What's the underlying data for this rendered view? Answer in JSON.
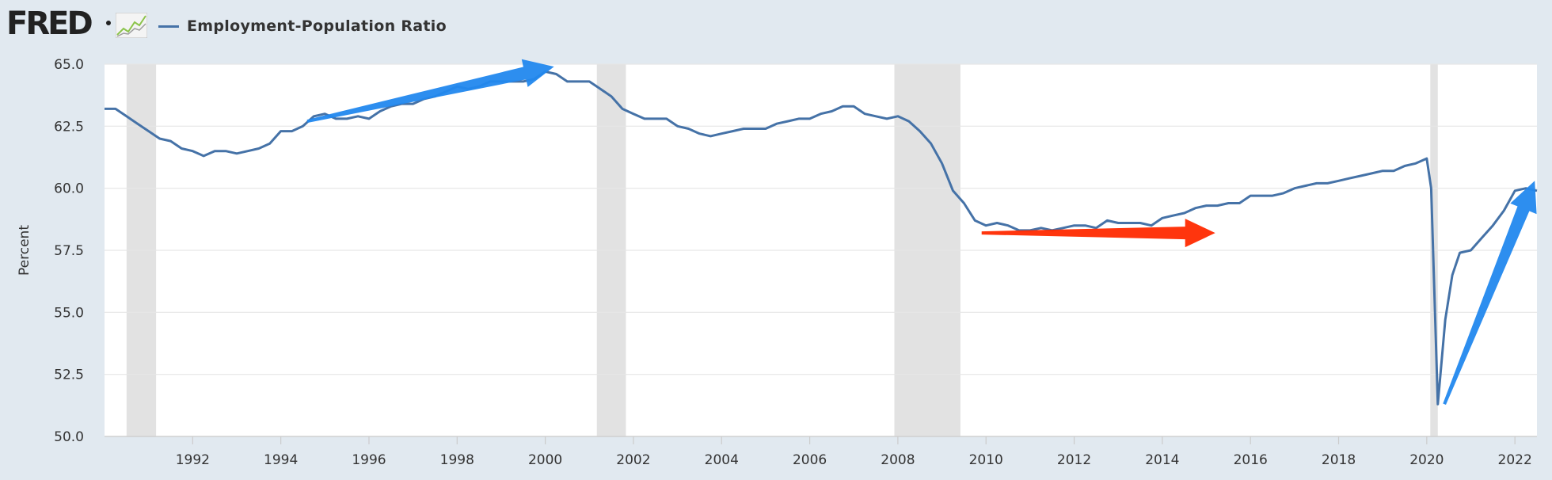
{
  "header": {
    "logo_text": "FRED",
    "legend_label": "Employment-Population Ratio",
    "series_color": "#4572a7"
  },
  "chart_data": {
    "type": "line",
    "ylabel": "Percent",
    "xlabel": "",
    "ylim": [
      50.0,
      65.0
    ],
    "xlim": [
      1990.0,
      2022.5
    ],
    "yticks": [
      "50.0",
      "52.5",
      "55.0",
      "57.5",
      "60.0",
      "62.5",
      "65.0"
    ],
    "xticks": [
      "1992",
      "1994",
      "1996",
      "1998",
      "2000",
      "2002",
      "2004",
      "2006",
      "2008",
      "2010",
      "2012",
      "2014",
      "2016",
      "2018",
      "2020",
      "2022"
    ],
    "grid": "horizontal",
    "recessions": [
      [
        1990.5,
        1991.17
      ],
      [
        2001.17,
        2001.83
      ],
      [
        2007.92,
        2009.42
      ],
      [
        2020.08,
        2020.25
      ]
    ],
    "series": [
      {
        "name": "Employment-Population Ratio",
        "color": "#4572a7",
        "points": [
          [
            1990.0,
            63.2
          ],
          [
            1990.25,
            63.2
          ],
          [
            1990.5,
            62.9
          ],
          [
            1990.75,
            62.6
          ],
          [
            1991.0,
            62.3
          ],
          [
            1991.25,
            62.0
          ],
          [
            1991.5,
            61.9
          ],
          [
            1991.75,
            61.6
          ],
          [
            1992.0,
            61.5
          ],
          [
            1992.25,
            61.3
          ],
          [
            1992.5,
            61.5
          ],
          [
            1992.75,
            61.5
          ],
          [
            1993.0,
            61.4
          ],
          [
            1993.25,
            61.5
          ],
          [
            1993.5,
            61.6
          ],
          [
            1993.75,
            61.8
          ],
          [
            1994.0,
            62.3
          ],
          [
            1994.25,
            62.3
          ],
          [
            1994.5,
            62.5
          ],
          [
            1994.75,
            62.9
          ],
          [
            1995.0,
            63.0
          ],
          [
            1995.25,
            62.8
          ],
          [
            1995.5,
            62.8
          ],
          [
            1995.75,
            62.9
          ],
          [
            1996.0,
            62.8
          ],
          [
            1996.25,
            63.1
          ],
          [
            1996.5,
            63.3
          ],
          [
            1996.75,
            63.4
          ],
          [
            1997.0,
            63.4
          ],
          [
            1997.25,
            63.6
          ],
          [
            1997.5,
            63.7
          ],
          [
            1997.75,
            63.9
          ],
          [
            1998.0,
            64.1
          ],
          [
            1998.25,
            64.0
          ],
          [
            1998.5,
            64.1
          ],
          [
            1998.75,
            64.3
          ],
          [
            1999.0,
            64.3
          ],
          [
            1999.25,
            64.3
          ],
          [
            1999.5,
            64.3
          ],
          [
            1999.75,
            64.4
          ],
          [
            2000.0,
            64.7
          ],
          [
            2000.25,
            64.6
          ],
          [
            2000.5,
            64.3
          ],
          [
            2000.75,
            64.3
          ],
          [
            2001.0,
            64.3
          ],
          [
            2001.25,
            64.0
          ],
          [
            2001.5,
            63.7
          ],
          [
            2001.75,
            63.2
          ],
          [
            2002.0,
            63.0
          ],
          [
            2002.25,
            62.8
          ],
          [
            2002.5,
            62.8
          ],
          [
            2002.75,
            62.8
          ],
          [
            2003.0,
            62.5
          ],
          [
            2003.25,
            62.4
          ],
          [
            2003.5,
            62.2
          ],
          [
            2003.75,
            62.1
          ],
          [
            2004.0,
            62.2
          ],
          [
            2004.25,
            62.3
          ],
          [
            2004.5,
            62.4
          ],
          [
            2004.75,
            62.4
          ],
          [
            2005.0,
            62.4
          ],
          [
            2005.25,
            62.6
          ],
          [
            2005.5,
            62.7
          ],
          [
            2005.75,
            62.8
          ],
          [
            2006.0,
            62.8
          ],
          [
            2006.25,
            63.0
          ],
          [
            2006.5,
            63.1
          ],
          [
            2006.75,
            63.3
          ],
          [
            2007.0,
            63.3
          ],
          [
            2007.25,
            63.0
          ],
          [
            2007.5,
            62.9
          ],
          [
            2007.75,
            62.8
          ],
          [
            2008.0,
            62.9
          ],
          [
            2008.25,
            62.7
          ],
          [
            2008.5,
            62.3
          ],
          [
            2008.75,
            61.8
          ],
          [
            2009.0,
            61.0
          ],
          [
            2009.25,
            59.9
          ],
          [
            2009.5,
            59.4
          ],
          [
            2009.75,
            58.7
          ],
          [
            2010.0,
            58.5
          ],
          [
            2010.25,
            58.6
          ],
          [
            2010.5,
            58.5
          ],
          [
            2010.75,
            58.3
          ],
          [
            2011.0,
            58.3
          ],
          [
            2011.25,
            58.4
          ],
          [
            2011.5,
            58.3
          ],
          [
            2011.75,
            58.4
          ],
          [
            2012.0,
            58.5
          ],
          [
            2012.25,
            58.5
          ],
          [
            2012.5,
            58.4
          ],
          [
            2012.75,
            58.7
          ],
          [
            2013.0,
            58.6
          ],
          [
            2013.25,
            58.6
          ],
          [
            2013.5,
            58.6
          ],
          [
            2013.75,
            58.5
          ],
          [
            2014.0,
            58.8
          ],
          [
            2014.25,
            58.9
          ],
          [
            2014.5,
            59.0
          ],
          [
            2014.75,
            59.2
          ],
          [
            2015.0,
            59.3
          ],
          [
            2015.25,
            59.3
          ],
          [
            2015.5,
            59.4
          ],
          [
            2015.75,
            59.4
          ],
          [
            2016.0,
            59.7
          ],
          [
            2016.25,
            59.7
          ],
          [
            2016.5,
            59.7
          ],
          [
            2016.75,
            59.8
          ],
          [
            2017.0,
            60.0
          ],
          [
            2017.25,
            60.1
          ],
          [
            2017.5,
            60.2
          ],
          [
            2017.75,
            60.2
          ],
          [
            2018.0,
            60.3
          ],
          [
            2018.25,
            60.4
          ],
          [
            2018.5,
            60.5
          ],
          [
            2018.75,
            60.6
          ],
          [
            2019.0,
            60.7
          ],
          [
            2019.25,
            60.7
          ],
          [
            2019.5,
            60.9
          ],
          [
            2019.75,
            61.0
          ],
          [
            2020.0,
            61.2
          ],
          [
            2020.1,
            60.0
          ],
          [
            2020.25,
            51.3
          ],
          [
            2020.42,
            54.7
          ],
          [
            2020.58,
            56.5
          ],
          [
            2020.75,
            57.4
          ],
          [
            2021.0,
            57.5
          ],
          [
            2021.25,
            58.0
          ],
          [
            2021.5,
            58.5
          ],
          [
            2021.75,
            59.1
          ],
          [
            2022.0,
            59.9
          ],
          [
            2022.25,
            60.0
          ],
          [
            2022.5,
            59.9
          ]
        ]
      }
    ],
    "annotations": [
      {
        "type": "arrow",
        "color": "#2288ee",
        "from": [
          1994.6,
          62.7
        ],
        "to": [
          2000.2,
          64.9
        ]
      },
      {
        "type": "arrow",
        "color": "#ff2a00",
        "from": [
          2009.9,
          58.2
        ],
        "to": [
          2015.2,
          58.2
        ]
      },
      {
        "type": "arrow",
        "color": "#2288ee",
        "from": [
          2020.4,
          51.3
        ],
        "to": [
          2022.45,
          60.3
        ]
      }
    ]
  }
}
